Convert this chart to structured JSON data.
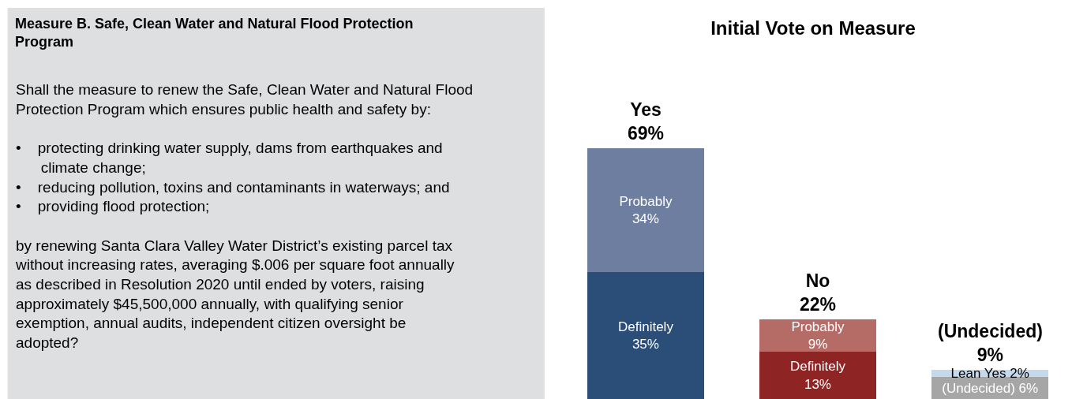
{
  "chart_data": {
    "type": "bar",
    "title": "Initial Vote on Measure",
    "stacked": true,
    "categories": [
      "Yes",
      "No",
      "(Undecided)"
    ],
    "series": [
      {
        "values": [
          35,
          13,
          6
        ],
        "colors": [
          "#2a4e78",
          "#8f2424",
          "#a6a6a6"
        ],
        "value_labels": [
          "Definitely\n35%",
          "Definitely\n13%",
          "(Undecided) 6%"
        ]
      },
      {
        "values": [
          34,
          9,
          2
        ],
        "colors": [
          "#6d7ea0",
          "#b56b66",
          "#c5d9ec"
        ],
        "value_labels": [
          "Probably\n34%",
          "Probably\n9%",
          "Lean Yes 2%"
        ]
      }
    ],
    "totals": [
      "69%",
      "22%",
      "9%"
    ],
    "annotations": [
      "Measure B. Safe, Clean Water and Natural Flood Protection\nProgram",
      "Shall the measure to renew the Safe, Clean Water and Natural Flood\nProtection Program which ensures public health and safety by:\n\n•    protecting drinking water supply, dams from earthquakes and\n      climate change;\n•    reducing pollution, toxins and contaminants in waterways; and\n•    providing flood protection;\n\nby renewing Santa Clara Valley Water District’s existing parcel tax\nwithout increasing rates, averaging $.006 per square foot annually\nas described in Resolution 2020 until ended by voters, raising\napproximately $45,500,000 annually, with qualifying senior\nexemption, annual audits, independent citizen oversight be\nadopted?"
    ]
  }
}
